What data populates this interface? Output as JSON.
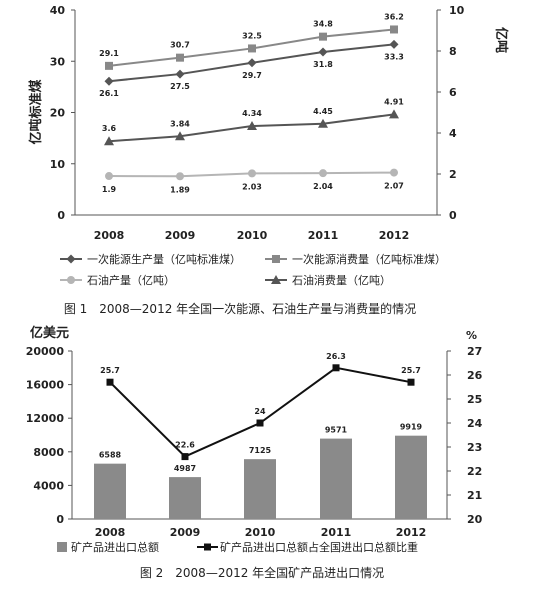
{
  "chart_data": [
    {
      "type": "line",
      "title": "图 1　2008—2012 年全国一次能源、石油生产量与消费量的情况",
      "categories": [
        "2008",
        "2009",
        "2010",
        "2011",
        "2012"
      ],
      "y_left_label": "亿吨标准煤",
      "y_left_lim": [
        0,
        40
      ],
      "y_left_ticks": [
        "0",
        "10",
        "20",
        "30",
        "40"
      ],
      "y_right_label": "亿吨",
      "y_right_lim": [
        0,
        10
      ],
      "y_right_ticks": [
        "0",
        "2",
        "4",
        "6",
        "8",
        "10"
      ],
      "series": [
        {
          "name": "一次能源生产量（亿吨标准煤）",
          "axis": "left",
          "marker": "diamond",
          "color": "#555555",
          "values": [
            26.1,
            27.5,
            29.7,
            31.8,
            33.3
          ],
          "labels": [
            "26.1",
            "27.5",
            "29.7",
            "31.8",
            "33.3"
          ]
        },
        {
          "name": "一次能源消费量（亿吨标准煤）",
          "axis": "left",
          "marker": "square",
          "color": "#888888",
          "values": [
            29.1,
            30.7,
            32.5,
            34.8,
            36.2
          ],
          "labels": [
            "29.1",
            "30.7",
            "32.5",
            "34.8",
            "36.2"
          ]
        },
        {
          "name": "石油产量（亿吨）",
          "axis": "right",
          "marker": "circle",
          "color": "#b5b5b5",
          "values": [
            1.9,
            1.89,
            2.03,
            2.04,
            2.07
          ],
          "labels": [
            "1.9",
            "1.89",
            "2.03",
            "2.04",
            "2.07"
          ]
        },
        {
          "name": "石油消费量（亿吨）",
          "axis": "right",
          "marker": "triangle",
          "color": "#555555",
          "values": [
            3.6,
            3.84,
            4.34,
            4.45,
            4.91
          ],
          "labels": [
            "3.6",
            "3.84",
            "4.34",
            "4.45",
            "4.91"
          ]
        }
      ]
    },
    {
      "type": "bar",
      "title": "图 2　2008—2012 年全国矿产品进出口情况",
      "categories": [
        "2008",
        "2009",
        "2010",
        "2011",
        "2012"
      ],
      "y_left_label": "亿美元",
      "y_left_lim": [
        0,
        20000
      ],
      "y_left_ticks": [
        "0",
        "4000",
        "8000",
        "12000",
        "16000",
        "20000"
      ],
      "y_right_label": "%",
      "y_right_lim": [
        20,
        27
      ],
      "y_right_ticks": [
        "20",
        "21",
        "22",
        "23",
        "24",
        "25",
        "26",
        "27"
      ],
      "bars": {
        "name": "矿产品进出口总额",
        "color": "#8a8a8a",
        "values": [
          6588,
          4987,
          7125,
          9571,
          9919
        ],
        "labels": [
          "6588",
          "4987",
          "7125",
          "9571",
          "9919"
        ]
      },
      "line": {
        "name": "矿产品进出口总额占全国进出口总额比重",
        "color": "#111111",
        "values": [
          25.7,
          22.6,
          24,
          26.3,
          25.7
        ],
        "labels": [
          "25.7",
          "22.6",
          "24",
          "26.3",
          "25.7"
        ]
      }
    }
  ]
}
